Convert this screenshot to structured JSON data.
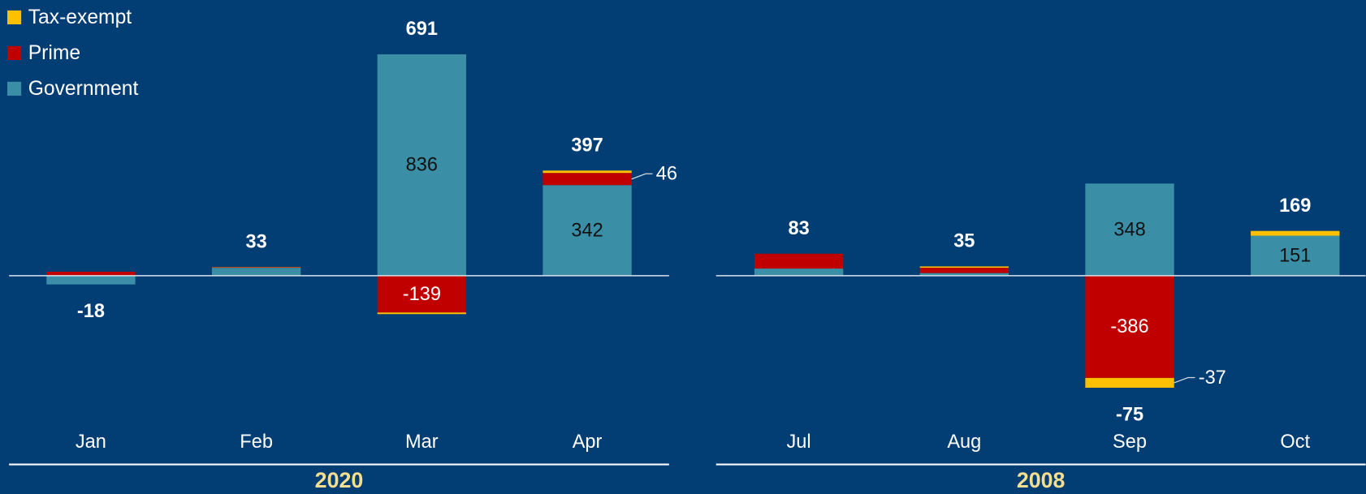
{
  "chart_data": [
    {
      "type": "bar",
      "stacked": true,
      "title": "2020",
      "categories": [
        "Jan",
        "Feb",
        "Mar",
        "Apr"
      ],
      "ylim": [
        -450,
        950
      ],
      "series": [
        {
          "name": "Government",
          "color": "#3a8ea5",
          "values": [
            -33,
            30,
            836,
            342
          ],
          "value_labels": [
            null,
            null,
            "836",
            "342"
          ]
        },
        {
          "name": "Prime",
          "color": "#c00000",
          "values": [
            15,
            2,
            -139,
            46
          ],
          "value_labels": [
            null,
            null,
            "-139",
            "46"
          ]
        },
        {
          "name": "Tax-exempt",
          "color": "#ffc000",
          "values": [
            0,
            1,
            -6,
            9
          ],
          "value_labels": [
            null,
            null,
            null,
            null
          ]
        }
      ],
      "totals": [
        -18,
        33,
        691,
        397
      ]
    },
    {
      "type": "bar",
      "stacked": true,
      "title": "2008",
      "categories": [
        "Jul",
        "Aug",
        "Sep",
        "Oct"
      ],
      "ylim": [
        -450,
        950
      ],
      "series": [
        {
          "color": "#3a8ea5",
          "values": [
            27,
            10,
            348,
            151
          ],
          "value_labels": [
            null,
            null,
            "348",
            "151"
          ]
        },
        {
          "color": "#c00000",
          "values": [
            56,
            20,
            -386,
            0
          ],
          "value_labels": [
            null,
            null,
            "-386",
            null
          ]
        },
        {
          "color": "#ffc000",
          "values": [
            0,
            5,
            -37,
            18
          ],
          "value_labels": [
            null,
            null,
            "-37",
            null
          ]
        }
      ],
      "totals": [
        83,
        35,
        -75,
        169
      ]
    }
  ]
}
